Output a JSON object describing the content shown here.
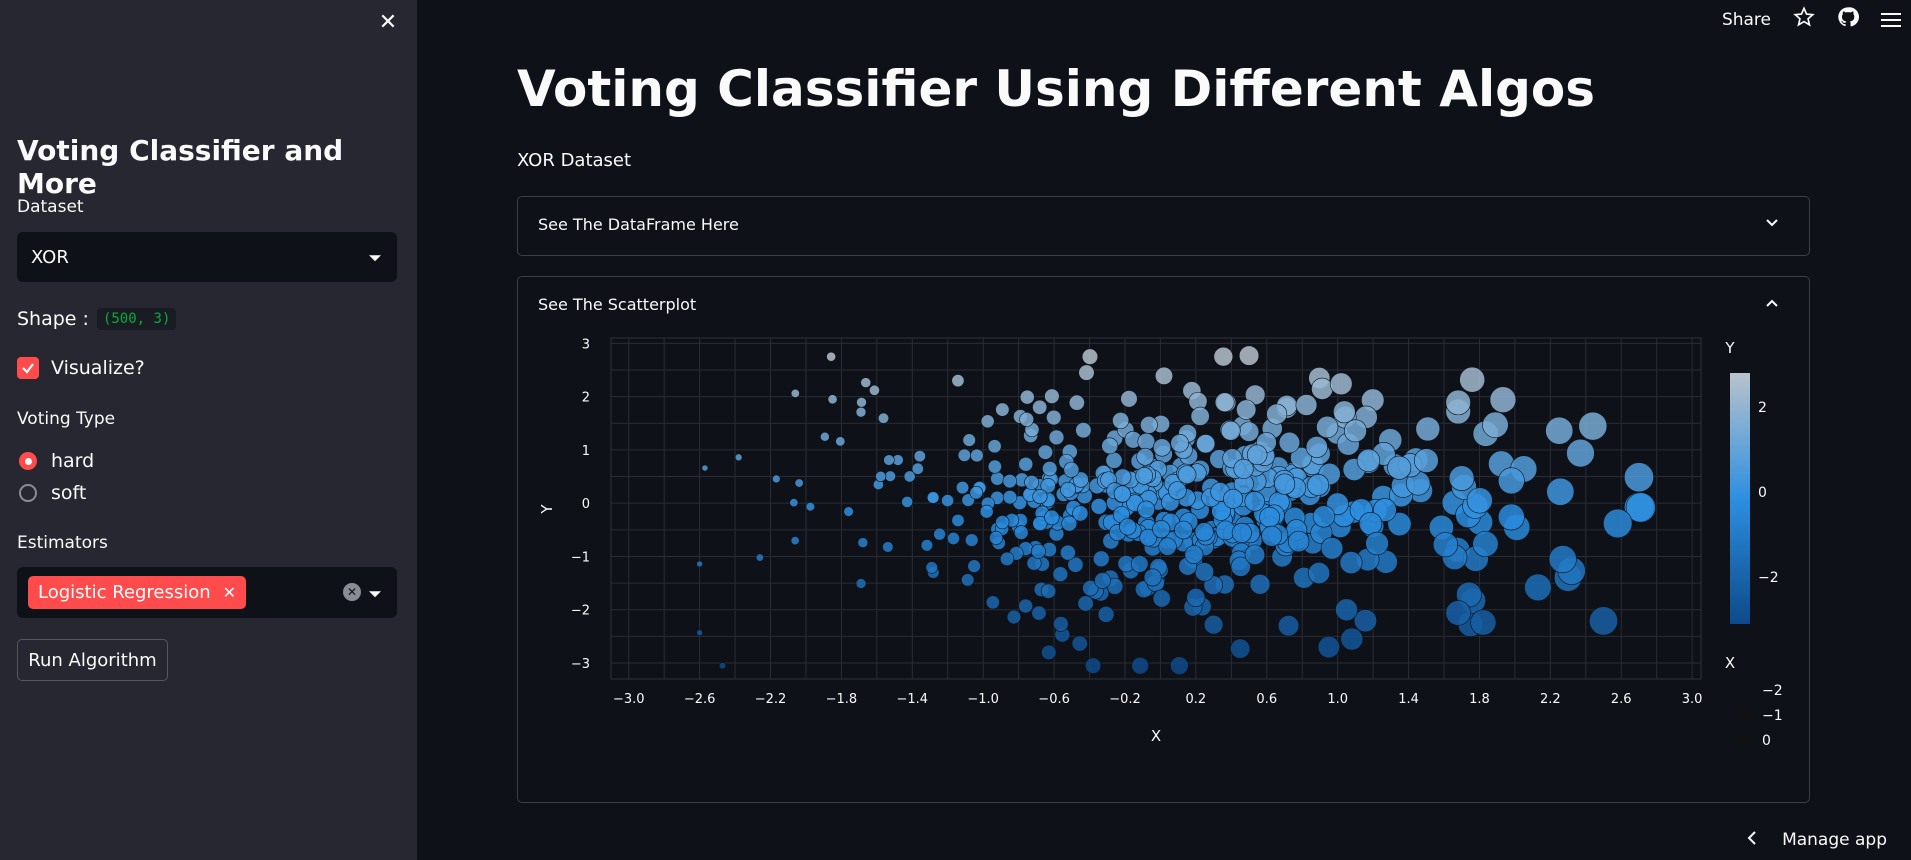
{
  "sidebar": {
    "close_label": "✕",
    "title": "Voting Classifier and More",
    "dataset_label": "Dataset",
    "dataset_value": "XOR",
    "shape_label": "Shape :",
    "shape_value": "(500, 3)",
    "visualize_label": "Visualize?",
    "voting_type_label": "Voting Type",
    "voting_options": [
      "hard",
      "soft"
    ],
    "voting_selected": "hard",
    "estimators_label": "Estimators",
    "estimators_selected": [
      "Logistic Regression"
    ],
    "tag_remove": "✕",
    "run_button": "Run Algorithm"
  },
  "header": {
    "share": "Share",
    "star_icon": "star-icon",
    "github_icon": "github-icon",
    "menu_icon": "menu-icon"
  },
  "main": {
    "title": "Voting Classifier Using Different Algos",
    "subtitle": "XOR Dataset",
    "expanders": [
      {
        "label": "See The DataFrame Here",
        "expanded": false
      },
      {
        "label": "See The Scatterplot",
        "expanded": true
      }
    ]
  },
  "footer": {
    "manage_app": "Manage app"
  },
  "colors": {
    "accent": "#ff4b4b",
    "background": "#0e1117",
    "sidebar": "#262730"
  },
  "chart_data": {
    "type": "scatter",
    "xlabel": "X",
    "ylabel": "Y",
    "xlim": [
      -3.1,
      3.05
    ],
    "ylim": [
      -3.3,
      3.1
    ],
    "x_ticks": [
      -3.0,
      -2.6,
      -2.2,
      -1.8,
      -1.4,
      -1.0,
      -0.6,
      -0.2,
      0.2,
      0.6,
      1.0,
      1.4,
      1.8,
      2.2,
      2.6,
      3.0
    ],
    "x_tick_labels": [
      "−3.0",
      "−2.6",
      "−2.2",
      "−1.8",
      "−1.4",
      "−1.0",
      "−0.6",
      "−0.2",
      "0.2",
      "0.6",
      "1.0",
      "1.4",
      "1.8",
      "2.2",
      "2.6",
      "3.0"
    ],
    "y_ticks": [
      3,
      2,
      1,
      0,
      -1,
      -2,
      -3
    ],
    "y_tick_labels": [
      "3",
      "2",
      "1",
      "0",
      "−1",
      "−2",
      "−3"
    ],
    "color_by": "Y",
    "size_by": "X",
    "colorbar": {
      "title": "Y",
      "ticks": [
        2,
        0,
        -2
      ],
      "tick_labels": [
        "2",
        "0",
        "−2"
      ],
      "range": [
        -3.1,
        2.8
      ]
    },
    "size_legend": {
      "title": "X",
      "labels": [
        "−2",
        "−1",
        "0"
      ]
    },
    "grid": true,
    "n_points": 500,
    "points_note": "500 points roughly in x∈[-2.6,2.7], y∈[-3.1,2.8]",
    "sample_points": [
      {
        "x": 2.71,
        "y": -0.08
      },
      {
        "x": 2.58,
        "y": -0.38
      },
      {
        "x": 2.5,
        "y": -2.21
      },
      {
        "x": 2.37,
        "y": 0.94
      },
      {
        "x": 2.32,
        "y": -1.27
      },
      {
        "x": 2.27,
        "y": -1.05
      },
      {
        "x": 2.25,
        "y": 1.36
      },
      {
        "x": 2.13,
        "y": -1.58
      },
      {
        "x": 1.89,
        "y": 1.47
      },
      {
        "x": 1.68,
        "y": 1.72
      },
      {
        "x": 1.68,
        "y": 1.89
      },
      {
        "x": 1.68,
        "y": -2.06
      },
      {
        "x": 1.02,
        "y": 2.24
      },
      {
        "x": 0.5,
        "y": 2.77
      },
      {
        "x": 0.02,
        "y": 2.39
      },
      {
        "x": -0.38,
        "y": -3.05
      },
      {
        "x": -0.63,
        "y": -2.8
      },
      {
        "x": -1.85,
        "y": 1.95
      },
      {
        "x": -2.06,
        "y": 2.06
      },
      {
        "x": -2.38,
        "y": 0.86
      },
      {
        "x": -2.57,
        "y": 0.66
      },
      {
        "x": -2.6,
        "y": -1.14
      },
      {
        "x": -2.26,
        "y": -1.02
      },
      {
        "x": 0.2,
        "y": -1.77
      },
      {
        "x": 0.3,
        "y": -2.28
      },
      {
        "x": 0.45,
        "y": -2.73
      },
      {
        "x": 0.95,
        "y": -2.7
      },
      {
        "x": 1.08,
        "y": -2.55
      },
      {
        "x": 1.05,
        "y": -2.0
      },
      {
        "x": 1.5,
        "y": 0.8
      },
      {
        "x": 1.98,
        "y": 0.42
      },
      {
        "x": 1.98,
        "y": -0.26
      }
    ]
  }
}
